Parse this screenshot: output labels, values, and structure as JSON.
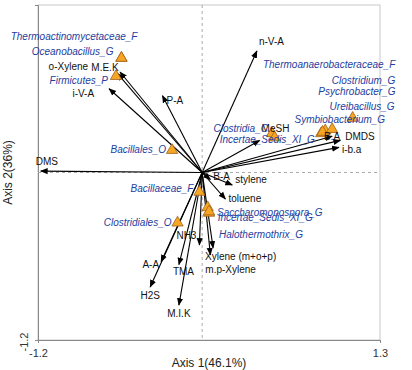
{
  "chart_data": {
    "type": "biplot",
    "xlabel": "Axis 1(46.1%)",
    "ylabel": "Axis 2(36%)",
    "xlim": [
      -1.2,
      1.3
    ],
    "ylim": [
      -1.2,
      1.2
    ],
    "xticks": [
      -1.2,
      1.3
    ],
    "yticks": [
      -1.2
    ],
    "grid": false,
    "series": [
      {
        "type": "arrow",
        "color": "#000000",
        "labels": [
          "n-V-A",
          "o-Xylene",
          "M.E.K",
          "i-V-A",
          "P-A",
          "MeSH",
          "B.A",
          "DMDS",
          "i-b.a",
          "DMS",
          "stylene",
          "toluene",
          "B-A",
          "NH3",
          "Xylene (m+o+p)",
          "m.p-Xylene",
          "A-A",
          "TMA",
          "H2S",
          "M.I.K"
        ],
        "x": [
          0.4,
          -0.6,
          -0.62,
          -0.68,
          -0.29,
          0.42,
          0.95,
          1.01,
          1.0,
          -1.18,
          0.22,
          0.17,
          0.06,
          -0.02,
          0.08,
          0.06,
          -0.3,
          -0.17,
          -0.38,
          -0.17
        ],
        "y": [
          0.87,
          0.72,
          0.71,
          0.6,
          0.55,
          0.23,
          0.26,
          0.23,
          0.18,
          0.01,
          -0.09,
          -0.19,
          -0.05,
          -0.52,
          -0.54,
          -0.59,
          -0.64,
          -0.66,
          -0.82,
          -0.95
        ]
      },
      {
        "type": "scatter",
        "marker": "triangle",
        "color": "#f5a623",
        "labels": [
          "Thermoactinomycetaceae_F",
          "Oceanobacillus_G",
          "Firmicutes_P",
          "Bacillales_O",
          "Thermoanaerobacteraceae_F",
          "Clostridium_G",
          "Psychrobacter_G",
          "Ureibacillus_G",
          "Symbiobacterium_G",
          "Clostridia_C",
          "Incertae_Sedis_XI_G",
          "Bacillaceae_F",
          "Saccharomonospora_G",
          "Incertae_Sedis_XI_G",
          "Halothermothrix_G",
          "Clostridiales_O"
        ],
        "x": [
          -0.59,
          -0.59,
          -0.63,
          -0.22,
          0.9,
          0.87,
          0.88,
          1.1,
          0.95,
          0.51,
          0.53,
          -0.02,
          0.05,
          0.04,
          0.05,
          -0.18
        ],
        "y": [
          0.82,
          0.82,
          0.69,
          0.16,
          0.3,
          0.28,
          0.29,
          0.39,
          0.31,
          0.28,
          0.25,
          -0.14,
          -0.29,
          -0.25,
          -0.28,
          -0.36
        ]
      }
    ]
  }
}
